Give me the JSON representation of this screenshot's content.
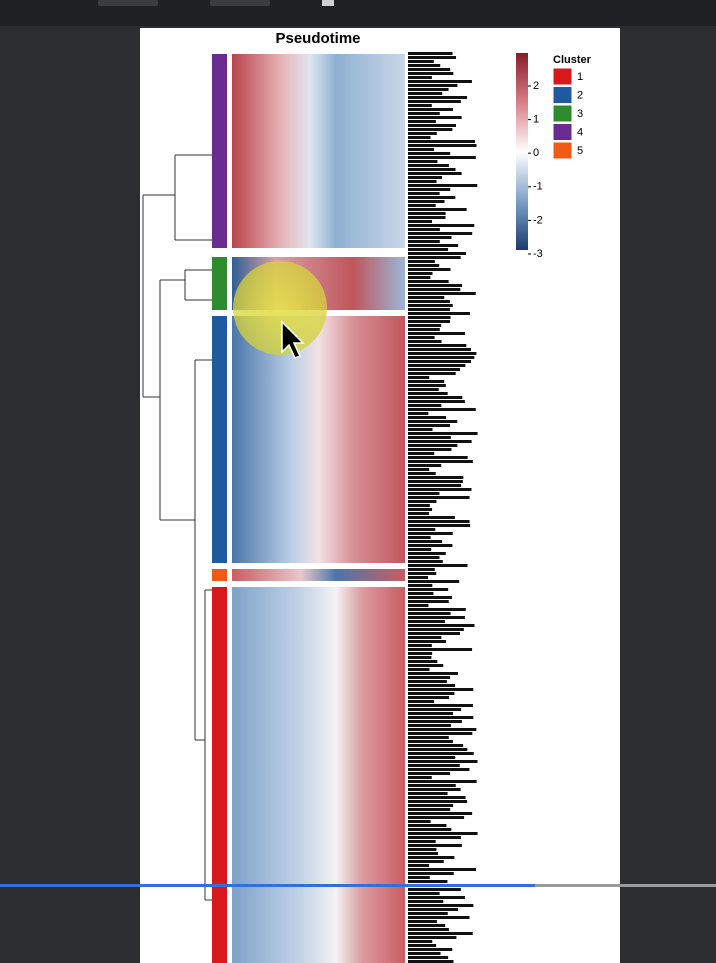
{
  "viewer": {
    "page": {
      "title": "Pseudotime"
    },
    "colorbar": {
      "ticks": [
        2,
        1,
        0,
        -1,
        -2,
        -3
      ]
    },
    "cluster_legend": {
      "title": "Cluster",
      "entries": [
        {
          "label": "1",
          "color": "#d7191c"
        },
        {
          "label": "2",
          "color": "#1f5aa0"
        },
        {
          "label": "3",
          "color": "#2e8b2e"
        },
        {
          "label": "4",
          "color": "#6a2c91"
        },
        {
          "label": "5",
          "color": "#f05a14"
        }
      ]
    }
  }
}
